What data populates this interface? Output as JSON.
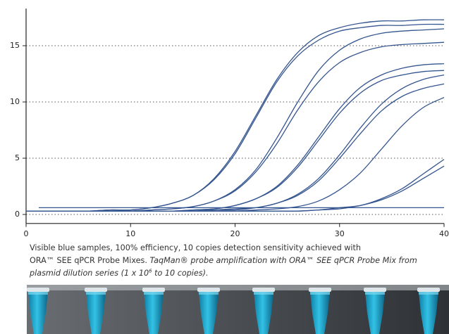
{
  "chart_data": {
    "type": "line",
    "x": [
      0,
      2,
      4,
      6,
      8,
      10,
      12,
      14,
      16,
      18,
      20,
      22,
      24,
      26,
      28,
      30,
      32,
      34,
      36,
      38,
      40
    ],
    "series": [
      {
        "color": "#34558f",
        "values": [
          0.3,
          0.3,
          0.3,
          0.3,
          0.4,
          0.4,
          0.6,
          1.0,
          1.7,
          3.2,
          5.6,
          8.8,
          12.0,
          14.4,
          15.9,
          16.6,
          17.0,
          17.2,
          17.2,
          17.3,
          17.3
        ]
      },
      {
        "color": "#34558f",
        "values": [
          0.3,
          0.3,
          0.3,
          0.3,
          0.4,
          0.4,
          0.6,
          1.0,
          1.7,
          3.1,
          5.4,
          8.6,
          11.8,
          14.1,
          15.5,
          16.3,
          16.6,
          16.8,
          16.8,
          16.9,
          16.9
        ]
      },
      {
        "color": "#34558f",
        "values": [
          0.3,
          0.3,
          0.3,
          0.3,
          0.3,
          0.3,
          0.4,
          0.5,
          0.7,
          1.2,
          2.2,
          4.0,
          6.8,
          10.0,
          12.8,
          14.6,
          15.6,
          16.1,
          16.3,
          16.4,
          16.5
        ]
      },
      {
        "color": "#34558f",
        "values": [
          0.3,
          0.3,
          0.3,
          0.3,
          0.3,
          0.3,
          0.4,
          0.5,
          0.7,
          1.2,
          2.1,
          3.8,
          6.3,
          9.3,
          11.8,
          13.5,
          14.4,
          14.9,
          15.1,
          15.2,
          15.3
        ]
      },
      {
        "color": "#34558f",
        "values": [
          0.3,
          0.3,
          0.3,
          0.3,
          0.3,
          0.3,
          0.3,
          0.3,
          0.4,
          0.5,
          0.8,
          1.4,
          2.5,
          4.4,
          6.9,
          9.4,
          11.3,
          12.4,
          13.0,
          13.3,
          13.4
        ]
      },
      {
        "color": "#34558f",
        "values": [
          0.3,
          0.3,
          0.3,
          0.3,
          0.3,
          0.3,
          0.3,
          0.3,
          0.4,
          0.5,
          0.8,
          1.4,
          2.4,
          4.2,
          6.6,
          9.0,
          10.8,
          11.9,
          12.4,
          12.7,
          12.8
        ]
      },
      {
        "color": "#34558f",
        "values": [
          0.3,
          0.3,
          0.3,
          0.3,
          0.3,
          0.3,
          0.3,
          0.3,
          0.3,
          0.4,
          0.5,
          0.6,
          1.0,
          1.8,
          3.2,
          5.3,
          7.7,
          9.8,
          11.2,
          12.0,
          12.4
        ]
      },
      {
        "color": "#34558f",
        "values": [
          0.3,
          0.3,
          0.3,
          0.3,
          0.3,
          0.3,
          0.3,
          0.3,
          0.3,
          0.4,
          0.4,
          0.6,
          1.0,
          1.7,
          3.0,
          5.0,
          7.2,
          9.2,
          10.5,
          11.2,
          11.6
        ]
      },
      {
        "color": "#34558f",
        "values": [
          0.3,
          0.3,
          0.3,
          0.3,
          0.3,
          0.3,
          0.3,
          0.3,
          0.3,
          0.3,
          0.3,
          0.4,
          0.5,
          0.7,
          1.2,
          2.2,
          3.7,
          5.8,
          7.9,
          9.5,
          10.4
        ]
      },
      {
        "color": "#34558f",
        "values": [
          0.3,
          0.3,
          0.3,
          0.3,
          0.3,
          0.3,
          0.3,
          0.3,
          0.3,
          0.3,
          0.3,
          0.3,
          0.3,
          0.3,
          0.4,
          0.6,
          0.8,
          1.4,
          2.3,
          3.6,
          4.9
        ]
      },
      {
        "color": "#34558f",
        "values": [
          0.3,
          0.3,
          0.3,
          0.3,
          0.3,
          0.3,
          0.3,
          0.3,
          0.3,
          0.3,
          0.3,
          0.3,
          0.3,
          0.3,
          0.4,
          0.5,
          0.8,
          1.3,
          2.1,
          3.2,
          4.3
        ]
      }
    ],
    "threshold": 0.6,
    "xlim": [
      0,
      40
    ],
    "xticks": [
      0,
      10,
      20,
      30,
      40
    ],
    "ylim": [
      -0.8,
      18.3
    ],
    "yticks": [
      0,
      5,
      10,
      15
    ],
    "grid": true
  },
  "caption": {
    "line1": "Visible blue samples, 100% efficiency, 10 copies detection sensitivity achieved with",
    "normal": "ORA™ SEE qPCR Probe Mixes.",
    "italic1": "TaqMan® probe amplification with ORA™ SEE qPCR Probe Mix from",
    "italic2_pre": "plasmid dilution series (1 x 10",
    "superscript": "6",
    "italic2_post": " to 10 copies)."
  }
}
